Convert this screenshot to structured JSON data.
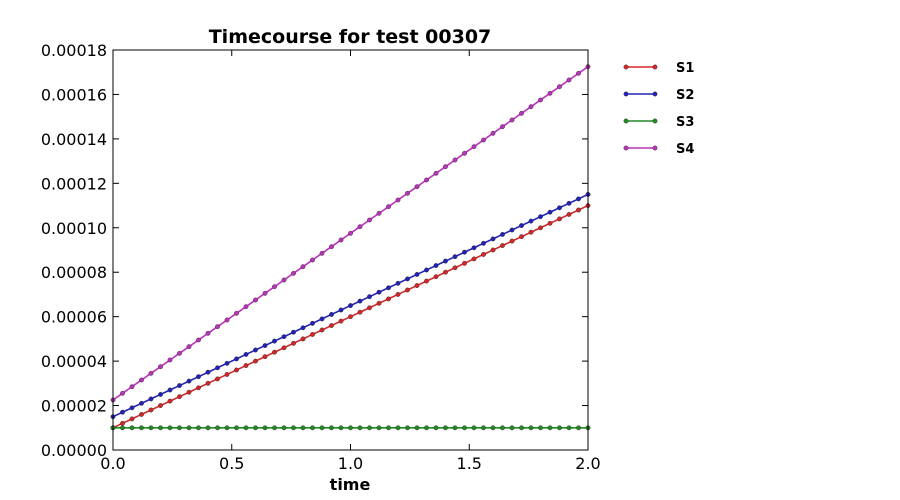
{
  "chart_data": {
    "type": "line",
    "title": "Timecourse for test 00307",
    "xlabel": "time",
    "ylabel": "",
    "xlim": [
      0,
      2.0
    ],
    "ylim": [
      0,
      0.00018
    ],
    "x_ticks": [
      0.0,
      0.5,
      1.0,
      1.5,
      2.0
    ],
    "x_tick_labels": [
      "0.0",
      "0.5",
      "1.0",
      "1.5",
      "2.0"
    ],
    "y_ticks": [
      0,
      2e-05,
      4e-05,
      6e-05,
      8e-05,
      0.0001,
      0.00012,
      0.00014,
      0.00016,
      0.00018
    ],
    "y_tick_labels": [
      "0.00000",
      "0.00002",
      "0.00004",
      "0.00006",
      "0.00008",
      "0.00010",
      "0.00012",
      "0.00014",
      "0.00016",
      "0.00018"
    ],
    "grid": false,
    "legend_position": "outside-right",
    "x_range": {
      "start": 0,
      "end": 2.0,
      "step": 0.04
    },
    "series": [
      {
        "name": "S1",
        "color": "#d62728",
        "y_start": 1e-05,
        "y_end": 0.00011
      },
      {
        "name": "S2",
        "color": "#2222bb",
        "y_start": 1.5e-05,
        "y_end": 0.000115
      },
      {
        "name": "S3",
        "color": "#228b22",
        "y_start": 1e-05,
        "y_end": 1e-05
      },
      {
        "name": "S4",
        "color": "#bb33bb",
        "y_start": 2.25e-05,
        "y_end": 0.0001725
      }
    ]
  }
}
